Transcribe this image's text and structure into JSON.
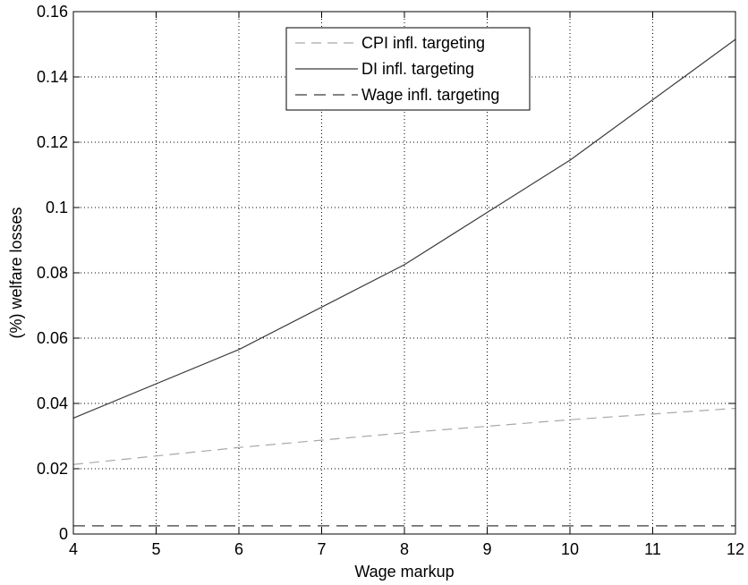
{
  "chart_data": {
    "type": "line",
    "xlabel": "Wage markup",
    "ylabel": "(%) welfare losses",
    "xlim": [
      4,
      12
    ],
    "ylim": [
      0,
      0.16
    ],
    "xticks": [
      "4",
      "5",
      "6",
      "7",
      "8",
      "9",
      "10",
      "11",
      "12"
    ],
    "yticks": [
      "0",
      "0.02",
      "0.04",
      "0.06",
      "0.08",
      "0.1",
      "0.12",
      "0.14",
      "0.16"
    ],
    "grid": true,
    "legend_position": "top-center",
    "series": [
      {
        "name": "CPI infl. targeting",
        "style": "dashed",
        "color": "#a8a8a8",
        "x": [
          4,
          6,
          8,
          10,
          12
        ],
        "values": [
          0.0213,
          0.0265,
          0.031,
          0.035,
          0.0385
        ]
      },
      {
        "name": "DI infl. targeting",
        "style": "solid",
        "color": "#3a3a3a",
        "x": [
          4,
          6,
          8,
          10,
          12
        ],
        "values": [
          0.0355,
          0.0565,
          0.0825,
          0.1145,
          0.1515
        ]
      },
      {
        "name": "Wage infl. targeting",
        "style": "dashed",
        "color": "#3a3a3a",
        "x": [
          4,
          6,
          8,
          10,
          12
        ],
        "values": [
          0.0025,
          0.0025,
          0.0025,
          0.0025,
          0.0025
        ]
      }
    ]
  }
}
